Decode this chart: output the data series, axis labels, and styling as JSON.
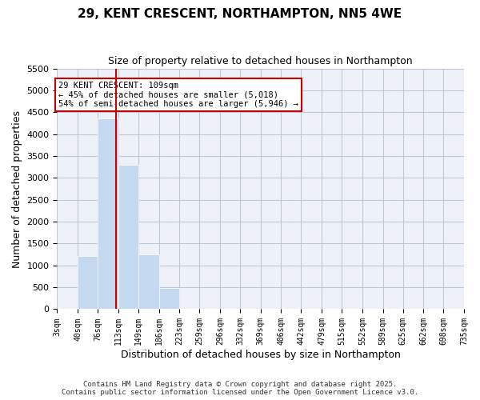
{
  "title": "29, KENT CRESCENT, NORTHAMPTON, NN5 4WE",
  "subtitle": "Size of property relative to detached houses in Northampton",
  "xlabel": "Distribution of detached houses by size in Northampton",
  "ylabel": "Number of detached properties",
  "bin_labels": [
    "3sqm",
    "40sqm",
    "76sqm",
    "113sqm",
    "149sqm",
    "186sqm",
    "223sqm",
    "259sqm",
    "296sqm",
    "332sqm",
    "369sqm",
    "406sqm",
    "442sqm",
    "479sqm",
    "515sqm",
    "552sqm",
    "589sqm",
    "625sqm",
    "662sqm",
    "698sqm",
    "735sqm"
  ],
  "bin_edges": [
    3,
    40,
    76,
    113,
    149,
    186,
    223,
    259,
    296,
    332,
    369,
    406,
    442,
    479,
    515,
    552,
    589,
    625,
    662,
    698,
    735
  ],
  "bar_heights": [
    0,
    1210,
    4350,
    3290,
    1250,
    490,
    0,
    0,
    0,
    0,
    0,
    0,
    0,
    0,
    0,
    0,
    0,
    0,
    0,
    0
  ],
  "bar_color": "#c5d9f0",
  "bar_edge_color": "#c5d9f0",
  "grid_color": "#c0c8d8",
  "background_color": "#eef2f8",
  "vline_x": 109,
  "vline_color": "#cc0000",
  "ylim": [
    0,
    5500
  ],
  "yticks": [
    0,
    500,
    1000,
    1500,
    2000,
    2500,
    3000,
    3500,
    4000,
    4500,
    5000,
    5500
  ],
  "annotation_text": "29 KENT CRESCENT: 109sqm\n← 45% of detached houses are smaller (5,018)\n54% of semi-detached houses are larger (5,946) →",
  "annotation_box_color": "#cc0000",
  "footer_line1": "Contains HM Land Registry data © Crown copyright and database right 2025.",
  "footer_line2": "Contains public sector information licensed under the Open Government Licence v3.0."
}
